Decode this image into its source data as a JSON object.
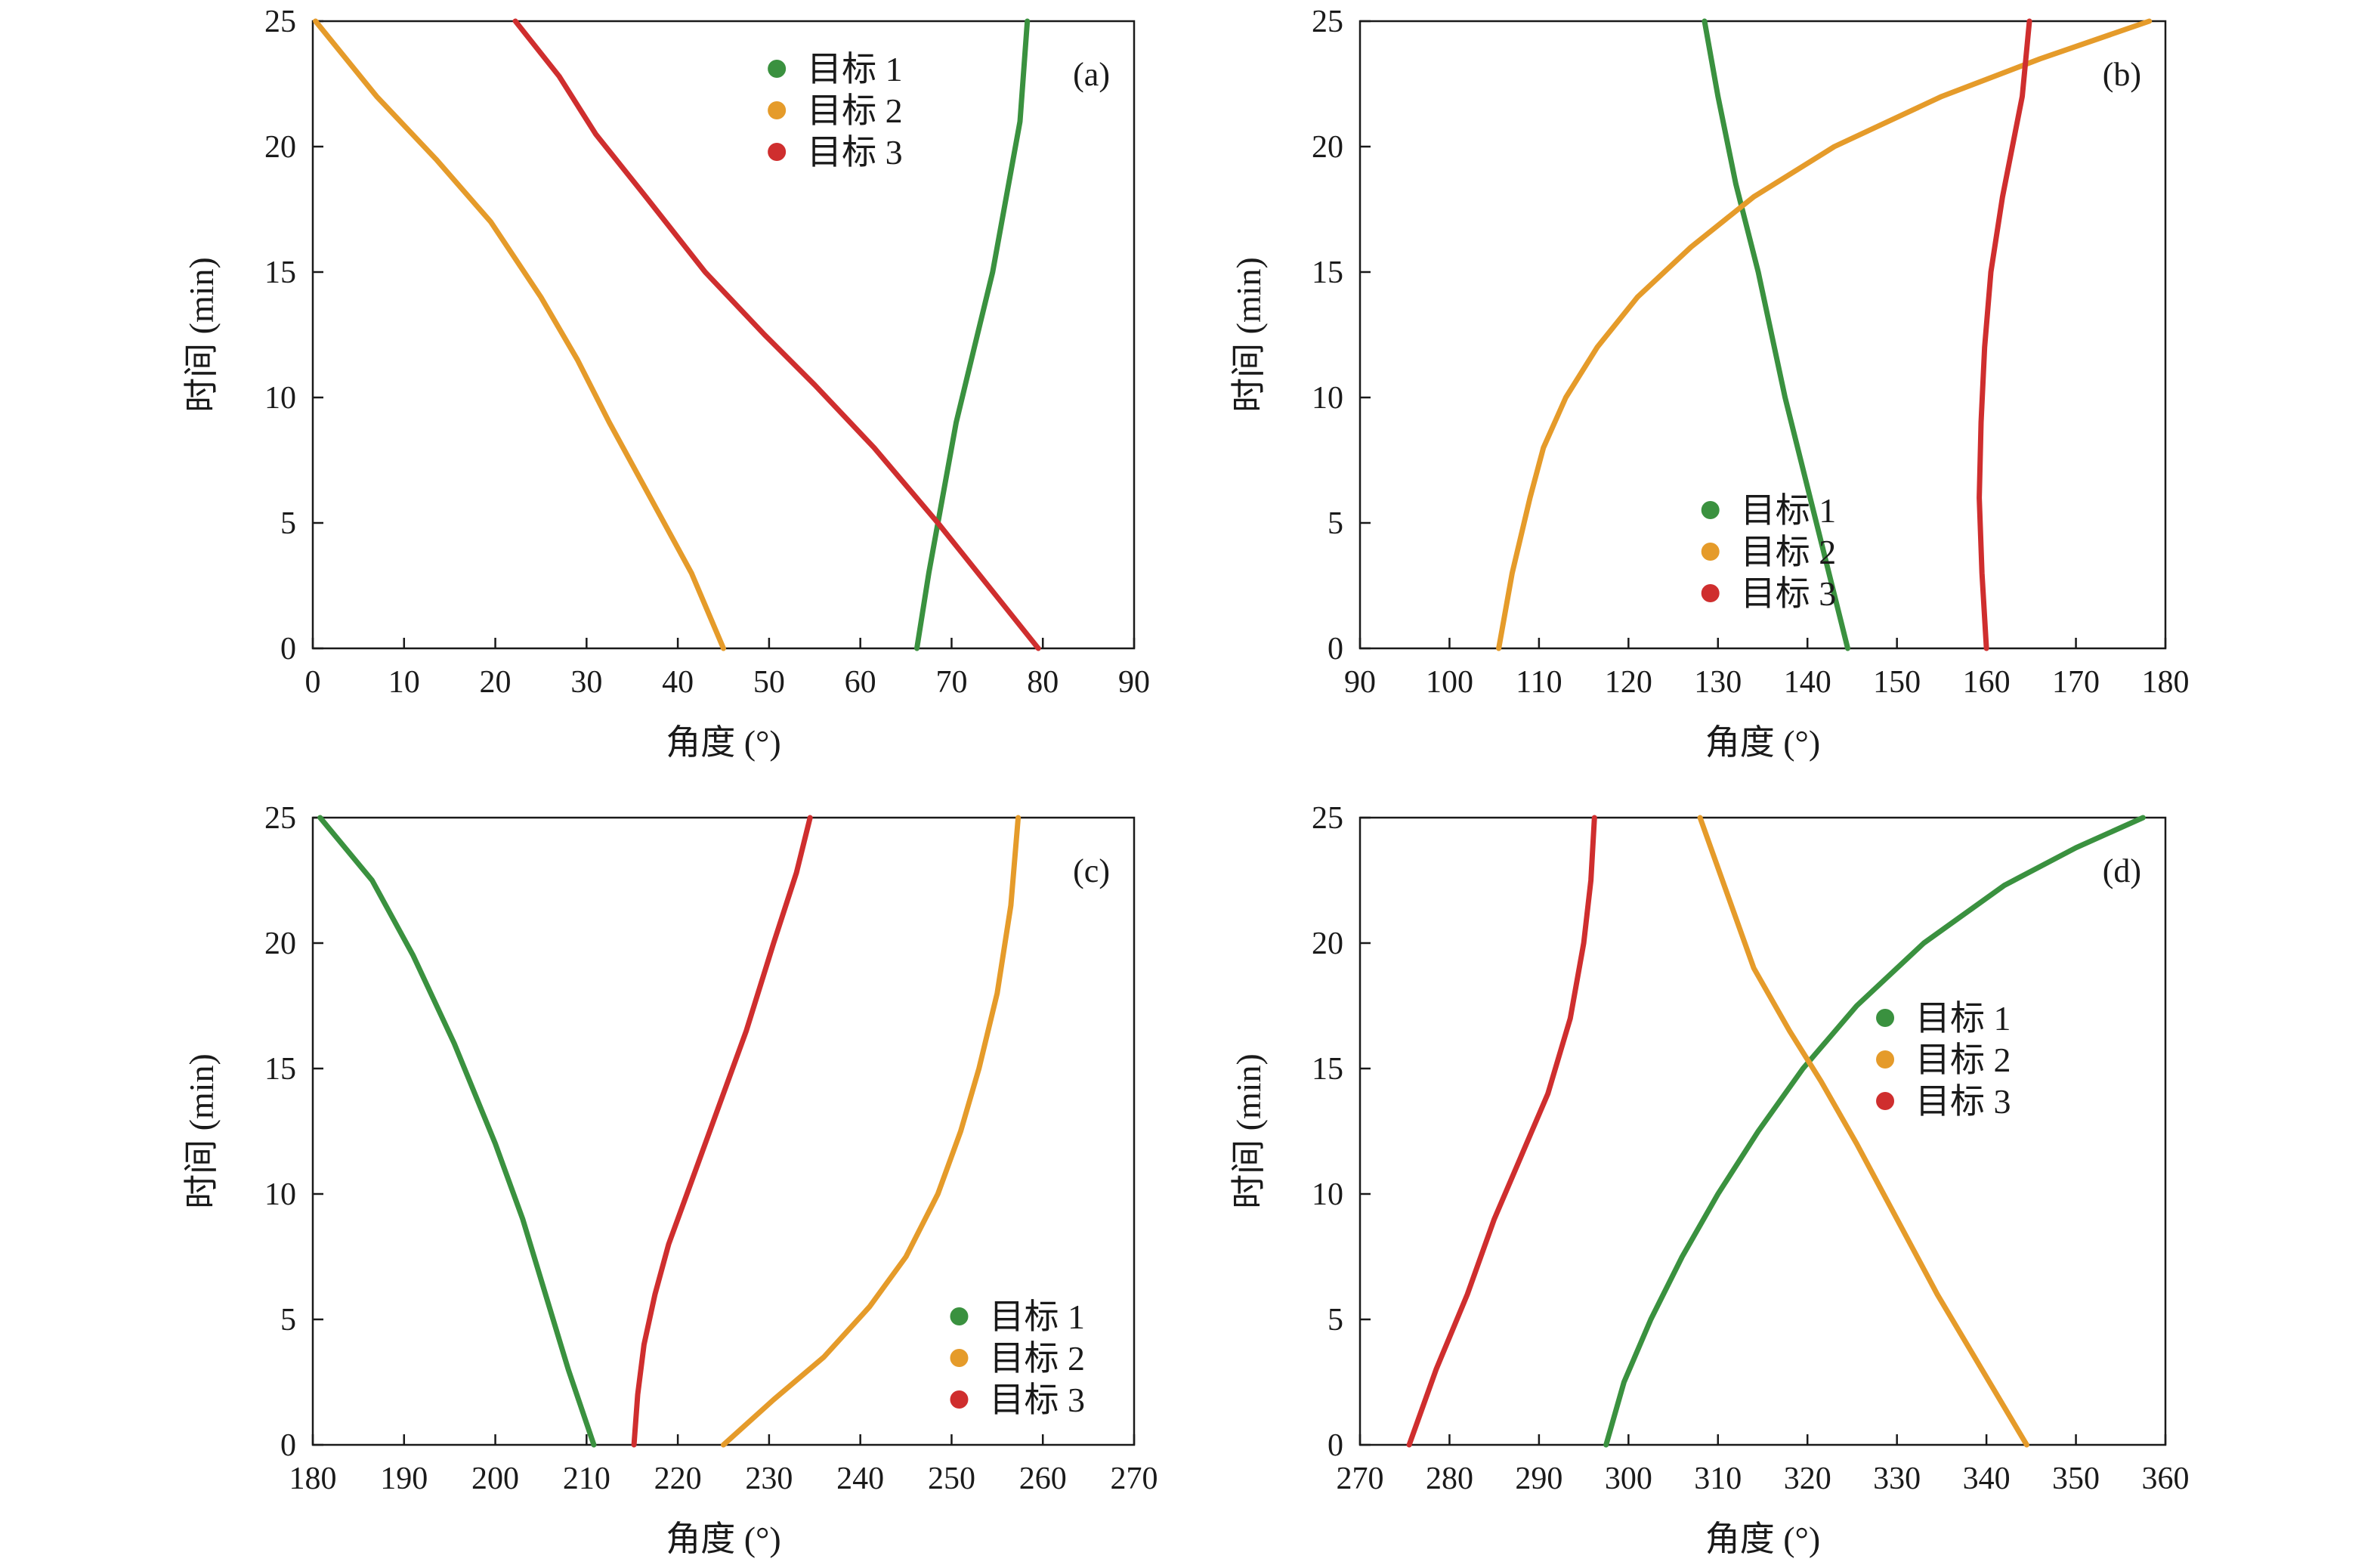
{
  "chart_data": [
    {
      "type": "line",
      "panel_label": "(a)",
      "xlabel": "角度 (°)",
      "ylabel": "时间 (min)",
      "xlim": [
        0,
        90
      ],
      "ylim": [
        0,
        25
      ],
      "xticks": [
        0,
        10,
        20,
        30,
        40,
        50,
        60,
        70,
        80,
        90
      ],
      "yticks": [
        0,
        5,
        10,
        15,
        20,
        25
      ],
      "legend_position": "top-center",
      "series": [
        {
          "name": "目标 1",
          "color": "#3a913f",
          "x": [
            66.2,
            67.5,
            69.0,
            70.5,
            72.5,
            74.5,
            76.0,
            77.5,
            78.3
          ],
          "y": [
            0,
            3,
            6,
            9,
            12,
            15,
            18,
            21,
            25
          ]
        },
        {
          "name": "目标 2",
          "color": "#e59b2a",
          "x": [
            45.0,
            41.5,
            37.0,
            32.5,
            29.0,
            25.0,
            19.5,
            13.5,
            7.0,
            0.3
          ],
          "y": [
            0,
            3,
            6,
            9,
            11.5,
            14,
            17,
            19.5,
            22,
            25
          ]
        },
        {
          "name": "目标 3",
          "color": "#cf2e2e",
          "x": [
            79.5,
            74.0,
            68.5,
            61.5,
            55.0,
            49.5,
            43.0,
            36.5,
            31.0,
            27.0,
            22.2
          ],
          "y": [
            0,
            2.5,
            5,
            8,
            10.5,
            12.5,
            15,
            18,
            20.5,
            22.8,
            25
          ]
        }
      ]
    },
    {
      "type": "line",
      "panel_label": "(b)",
      "xlabel": "角度 (°)",
      "ylabel": "时间 (min)",
      "xlim": [
        90,
        180
      ],
      "ylim": [
        0,
        25
      ],
      "xticks": [
        90,
        100,
        110,
        120,
        130,
        140,
        150,
        160,
        170,
        180
      ],
      "yticks": [
        0,
        5,
        10,
        15,
        20,
        25
      ],
      "legend_position": "bottom-center",
      "series": [
        {
          "name": "目标 1",
          "color": "#3a913f",
          "x": [
            144.5,
            141.0,
            137.5,
            134.5,
            132.0,
            130.0,
            128.5
          ],
          "y": [
            0,
            5,
            10,
            15,
            18.5,
            22,
            25
          ]
        },
        {
          "name": "目标 2",
          "color": "#e59b2a",
          "x": [
            105.5,
            107.0,
            109.0,
            110.5,
            113.0,
            116.5,
            121.0,
            127.0,
            134.0,
            143.0,
            155.0,
            166.0,
            178.2
          ],
          "y": [
            0,
            3,
            6,
            8,
            10,
            12,
            14,
            16,
            18,
            20,
            22,
            23.5,
            25
          ]
        },
        {
          "name": "目标 3",
          "color": "#cf2e2e",
          "x": [
            160.0,
            159.5,
            159.2,
            159.4,
            159.8,
            160.5,
            161.8,
            164.0,
            164.8
          ],
          "y": [
            0,
            3,
            6,
            9,
            12,
            15,
            18,
            22,
            25
          ]
        }
      ]
    },
    {
      "type": "line",
      "panel_label": "(c)",
      "xlabel": "角度 (°)",
      "ylabel": "时间 (min)",
      "xlim": [
        180,
        270
      ],
      "ylim": [
        0,
        25
      ],
      "xticks": [
        180,
        190,
        200,
        210,
        220,
        230,
        240,
        250,
        260,
        270
      ],
      "yticks": [
        0,
        5,
        10,
        15,
        20,
        25
      ],
      "legend_position": "bottom-right",
      "series": [
        {
          "name": "目标 1",
          "color": "#3a913f",
          "x": [
            210.8,
            208.0,
            205.5,
            203.0,
            200.0,
            195.5,
            191.0,
            186.5,
            180.8
          ],
          "y": [
            0,
            3,
            6,
            9,
            12,
            16,
            19.5,
            22.5,
            25
          ]
        },
        {
          "name": "目标 2",
          "color": "#e59b2a",
          "x": [
            225.0,
            230.5,
            236.0,
            241.0,
            245.0,
            248.5,
            251.0,
            253.0,
            255.0,
            256.5,
            257.3
          ],
          "y": [
            0,
            1.8,
            3.5,
            5.5,
            7.5,
            10,
            12.5,
            15,
            18,
            21.5,
            25
          ]
        },
        {
          "name": "目标 3",
          "color": "#cf2e2e",
          "x": [
            215.2,
            215.6,
            216.3,
            217.5,
            219.0,
            221.0,
            224.0,
            227.5,
            230.5,
            233.0,
            234.5
          ],
          "y": [
            0,
            2,
            4,
            6,
            8,
            10,
            13,
            16.5,
            20,
            22.8,
            25
          ]
        }
      ]
    },
    {
      "type": "line",
      "panel_label": "(d)",
      "xlabel": "角度 (°)",
      "ylabel": "时间 (min)",
      "xlim": [
        270,
        360
      ],
      "ylim": [
        0,
        25
      ],
      "xticks": [
        270,
        280,
        290,
        300,
        310,
        320,
        330,
        340,
        350,
        360
      ],
      "yticks": [
        0,
        5,
        10,
        15,
        20,
        25
      ],
      "legend_position": "middle-right",
      "series": [
        {
          "name": "目标 1",
          "color": "#3a913f",
          "x": [
            297.5,
            299.5,
            302.5,
            306.0,
            310.0,
            314.5,
            319.5,
            325.5,
            333.0,
            342.0,
            350.0,
            357.5
          ],
          "y": [
            0,
            2.5,
            5,
            7.5,
            10,
            12.5,
            15,
            17.5,
            20,
            22.3,
            23.8,
            25
          ]
        },
        {
          "name": "目标 2",
          "color": "#e59b2a",
          "x": [
            344.5,
            339.5,
            334.5,
            330.0,
            325.5,
            321.5,
            318.0,
            314.0,
            311.0,
            308.0
          ],
          "y": [
            0,
            3,
            6,
            9,
            12,
            14.5,
            16.5,
            19,
            22,
            25
          ]
        },
        {
          "name": "目标 3",
          "color": "#cf2e2e",
          "x": [
            275.5,
            278.5,
            282.0,
            285.0,
            288.0,
            291.0,
            293.5,
            295.0,
            295.8,
            296.2
          ],
          "y": [
            0,
            3,
            6,
            9,
            11.5,
            14,
            17,
            20,
            22.5,
            25
          ]
        }
      ]
    }
  ]
}
